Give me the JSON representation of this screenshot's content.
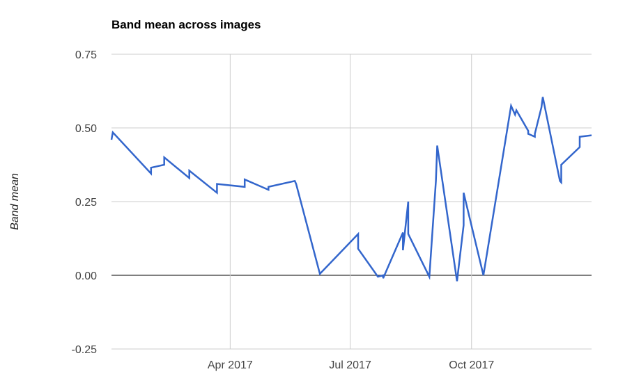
{
  "chart_data": {
    "type": "line",
    "title": "Band mean across images",
    "xlabel": "",
    "ylabel": "Band mean",
    "xlim": [
      "2017-01-01",
      "2017-12-31"
    ],
    "ylim": [
      -0.25,
      0.75
    ],
    "y_ticks": [
      "0.75",
      "0.50",
      "0.25",
      "0.00",
      "-0.25"
    ],
    "y_tick_values": [
      0.75,
      0.5,
      0.25,
      0.0,
      -0.25
    ],
    "x_ticks": [
      {
        "label": "Apr 2017",
        "date": "2017-04-01"
      },
      {
        "label": "Jul 2017",
        "date": "2017-07-01"
      },
      {
        "label": "Oct 2017",
        "date": "2017-10-01"
      }
    ],
    "grid": true,
    "colors": {
      "line": "#3366cc",
      "grid": "#cccccc",
      "zero_line": "#333333"
    },
    "series": [
      {
        "points": [
          {
            "x": "2017-01-01",
            "y": 0.46
          },
          {
            "x": "2017-01-02",
            "y": 0.485
          },
          {
            "x": "2017-01-31",
            "y": 0.345
          },
          {
            "x": "2017-01-31",
            "y": 0.365
          },
          {
            "x": "2017-02-10",
            "y": 0.375
          },
          {
            "x": "2017-02-10",
            "y": 0.4
          },
          {
            "x": "2017-03-01",
            "y": 0.33
          },
          {
            "x": "2017-03-01",
            "y": 0.355
          },
          {
            "x": "2017-03-22",
            "y": 0.28
          },
          {
            "x": "2017-03-22",
            "y": 0.31
          },
          {
            "x": "2017-04-12",
            "y": 0.3
          },
          {
            "x": "2017-04-12",
            "y": 0.325
          },
          {
            "x": "2017-04-30",
            "y": 0.29
          },
          {
            "x": "2017-04-30",
            "y": 0.3
          },
          {
            "x": "2017-05-20",
            "y": 0.32
          },
          {
            "x": "2017-05-21",
            "y": 0.31
          },
          {
            "x": "2017-06-08",
            "y": 0.005
          },
          {
            "x": "2017-07-07",
            "y": 0.14
          },
          {
            "x": "2017-07-07",
            "y": 0.09
          },
          {
            "x": "2017-07-22",
            "y": -0.005
          },
          {
            "x": "2017-07-26",
            "y": 0.0
          },
          {
            "x": "2017-07-26",
            "y": -0.01
          },
          {
            "x": "2017-08-10",
            "y": 0.145
          },
          {
            "x": "2017-08-10",
            "y": 0.085
          },
          {
            "x": "2017-08-14",
            "y": 0.25
          },
          {
            "x": "2017-08-14",
            "y": 0.14
          },
          {
            "x": "2017-08-30",
            "y": -0.005
          },
          {
            "x": "2017-09-04",
            "y": 0.32
          },
          {
            "x": "2017-09-05",
            "y": 0.44
          },
          {
            "x": "2017-09-20",
            "y": -0.02
          },
          {
            "x": "2017-09-25",
            "y": 0.17
          },
          {
            "x": "2017-09-25",
            "y": 0.28
          },
          {
            "x": "2017-10-10",
            "y": 0.0
          },
          {
            "x": "2017-10-31",
            "y": 0.575
          },
          {
            "x": "2017-11-03",
            "y": 0.545
          },
          {
            "x": "2017-11-04",
            "y": 0.56
          },
          {
            "x": "2017-11-13",
            "y": 0.49
          },
          {
            "x": "2017-11-13",
            "y": 0.48
          },
          {
            "x": "2017-11-18",
            "y": 0.47
          },
          {
            "x": "2017-11-18",
            "y": 0.48
          },
          {
            "x": "2017-11-23",
            "y": 0.57
          },
          {
            "x": "2017-11-24",
            "y": 0.605
          },
          {
            "x": "2017-12-07",
            "y": 0.32
          },
          {
            "x": "2017-12-08",
            "y": 0.315
          },
          {
            "x": "2017-12-08",
            "y": 0.375
          },
          {
            "x": "2017-12-22",
            "y": 0.435
          },
          {
            "x": "2017-12-22",
            "y": 0.47
          },
          {
            "x": "2017-12-31",
            "y": 0.475
          }
        ]
      }
    ]
  }
}
